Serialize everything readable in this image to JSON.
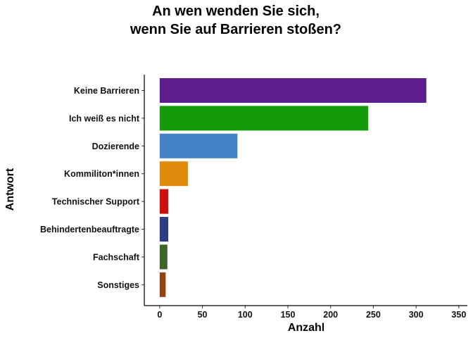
{
  "chart_data": {
    "type": "bar",
    "orientation": "horizontal",
    "title_lines": [
      "An wen wenden Sie sich,",
      "wenn Sie auf Barrieren stoßen?"
    ],
    "xlabel": "Anzahl",
    "ylabel": "Antwort",
    "xlim": [
      -18,
      360
    ],
    "xticks": [
      0,
      50,
      100,
      150,
      200,
      250,
      300,
      350
    ],
    "grid": false,
    "categories": [
      "Keine Barrieren",
      "Ich weiß es nicht",
      "Dozierende",
      "Kommiliton*innen",
      "Technischer Support",
      "Behindertenbeauftragte",
      "Fachschaft",
      "Sonstiges"
    ],
    "values": [
      312,
      244,
      91,
      33,
      10,
      10,
      9,
      7
    ],
    "colors": [
      "#5f1e8f",
      "#159a0b",
      "#4382c5",
      "#e08a0b",
      "#d10e0e",
      "#2e3d88",
      "#3f6427",
      "#92440f"
    ]
  }
}
